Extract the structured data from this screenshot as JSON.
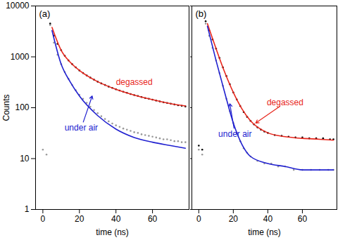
{
  "chart_data": [
    {
      "type": "scatter",
      "title": "(a)",
      "xlabel": "time (ns)",
      "ylabel": "Counts",
      "xlim": [
        -4,
        80
      ],
      "xticks": [
        0,
        20,
        40,
        60
      ],
      "ylim": [
        1,
        10000
      ],
      "yticks": [
        1,
        10,
        100,
        1000,
        10000
      ],
      "log": "y",
      "tick_labels": true,
      "series": [
        {
          "type": "scatter",
          "color": "#000000",
          "x": [
            4,
            6,
            8,
            10,
            12,
            14,
            16,
            18,
            20,
            22,
            24,
            26,
            28,
            30,
            32,
            34,
            36,
            38,
            40,
            42,
            44,
            46,
            48,
            50,
            52,
            54,
            56,
            58,
            60,
            62,
            64,
            66,
            68,
            70,
            72,
            74,
            76,
            78
          ],
          "values": [
            4500,
            2600,
            1800,
            1350,
            1050,
            850,
            720,
            620,
            540,
            480,
            430,
            390,
            355,
            325,
            300,
            280,
            260,
            245,
            230,
            218,
            206,
            196,
            186,
            177,
            170,
            162,
            155,
            150,
            144,
            138,
            133,
            128,
            124,
            120,
            116,
            112,
            109,
            106
          ]
        },
        {
          "type": "scatter",
          "color": "#999999",
          "x": [
            0,
            2,
            4,
            6,
            8,
            10,
            12,
            14,
            16,
            18,
            20,
            22,
            24,
            26,
            28,
            30,
            32,
            34,
            36,
            38,
            40,
            42,
            44,
            46,
            48,
            50,
            52,
            54,
            56,
            58,
            60,
            62,
            64,
            66,
            68,
            70,
            72,
            74,
            76,
            78
          ],
          "values": [
            15,
            12,
            4200,
            1900,
            1100,
            720,
            500,
            370,
            280,
            220,
            180,
            150,
            125,
            105,
            90,
            78,
            68,
            60,
            54,
            49,
            45,
            42,
            39,
            37,
            35,
            33,
            32,
            30,
            29,
            28,
            27,
            26,
            25,
            24,
            24,
            23,
            22,
            22,
            21,
            21
          ]
        },
        {
          "type": "line",
          "color": "#e8261c",
          "x": [
            5,
            10,
            15,
            20,
            30,
            40,
            50,
            60,
            70,
            78
          ],
          "values": [
            3800,
            1350,
            780,
            540,
            325,
            230,
            177,
            144,
            120,
            108
          ]
        },
        {
          "type": "line",
          "color": "#2020d0",
          "x": [
            5,
            10,
            15,
            20,
            30,
            40,
            50,
            60,
            70,
            78
          ],
          "values": [
            3300,
            720,
            320,
            170,
            70,
            38,
            26,
            21,
            18,
            16
          ]
        }
      ],
      "annotations": [
        {
          "text": "degassed",
          "x": 50,
          "y": 320,
          "color": "#e8261c"
        },
        {
          "text": "under air",
          "x": 21,
          "y": 40,
          "color": "#2020d0",
          "points_to": [
            27,
            170
          ]
        }
      ]
    },
    {
      "type": "scatter",
      "title": "(b)",
      "xlabel": "time (ns)",
      "xlim": [
        -4,
        80
      ],
      "xticks": [
        0,
        20,
        40,
        60
      ],
      "ylim": [
        1,
        10000
      ],
      "yticks": [
        1,
        10,
        100,
        1000,
        10000
      ],
      "log": "y",
      "tick_labels": "x",
      "series": [
        {
          "type": "scatter",
          "color": "#000000",
          "x": [
            0,
            2,
            4,
            6,
            8,
            10,
            12,
            14,
            16,
            18,
            20,
            22,
            24,
            26,
            28,
            30,
            32,
            34,
            36,
            38,
            40,
            44,
            48,
            52,
            56,
            60,
            64,
            68,
            72,
            76,
            78
          ],
          "values": [
            18,
            15,
            5000,
            3300,
            2200,
            1450,
            950,
            620,
            420,
            290,
            200,
            145,
            108,
            82,
            66,
            55,
            47,
            41,
            37,
            34,
            32,
            29,
            28,
            27,
            26,
            26,
            25,
            25,
            25,
            24,
            24
          ]
        },
        {
          "type": "scatter",
          "color": "#999999",
          "x": [
            0,
            2,
            4,
            6,
            8,
            10,
            12,
            14,
            16,
            18,
            20,
            22,
            24,
            26,
            28,
            30,
            34,
            38,
            42,
            46,
            50,
            55,
            60,
            65,
            70,
            75,
            78
          ],
          "values": [
            15,
            12,
            4500,
            2600,
            1500,
            850,
            480,
            270,
            150,
            85,
            50,
            32,
            22,
            16,
            13,
            11,
            9,
            8,
            8,
            7,
            7,
            6,
            6,
            6,
            6,
            6,
            6
          ]
        },
        {
          "type": "line",
          "color": "#e8261c",
          "x": [
            5,
            10,
            15,
            20,
            25,
            30,
            40,
            50,
            60,
            70,
            78
          ],
          "values": [
            4500,
            1450,
            500,
            200,
            95,
            55,
            32,
            27,
            25,
            24,
            23
          ]
        },
        {
          "type": "line",
          "color": "#2020d0",
          "x": [
            5,
            10,
            15,
            20,
            25,
            30,
            40,
            50,
            60,
            78
          ],
          "values": [
            4000,
            850,
            200,
            50,
            19,
            11,
            8,
            7,
            6,
            6
          ]
        }
      ],
      "annotations": [
        {
          "text": "degassed",
          "x": 50,
          "y": 125,
          "color": "#e8261c",
          "points_to": [
            33,
            50
          ]
        },
        {
          "text": "under air",
          "x": 21,
          "y": 30,
          "color": "#2020d0",
          "points_to": [
            18,
            120
          ]
        }
      ]
    }
  ]
}
